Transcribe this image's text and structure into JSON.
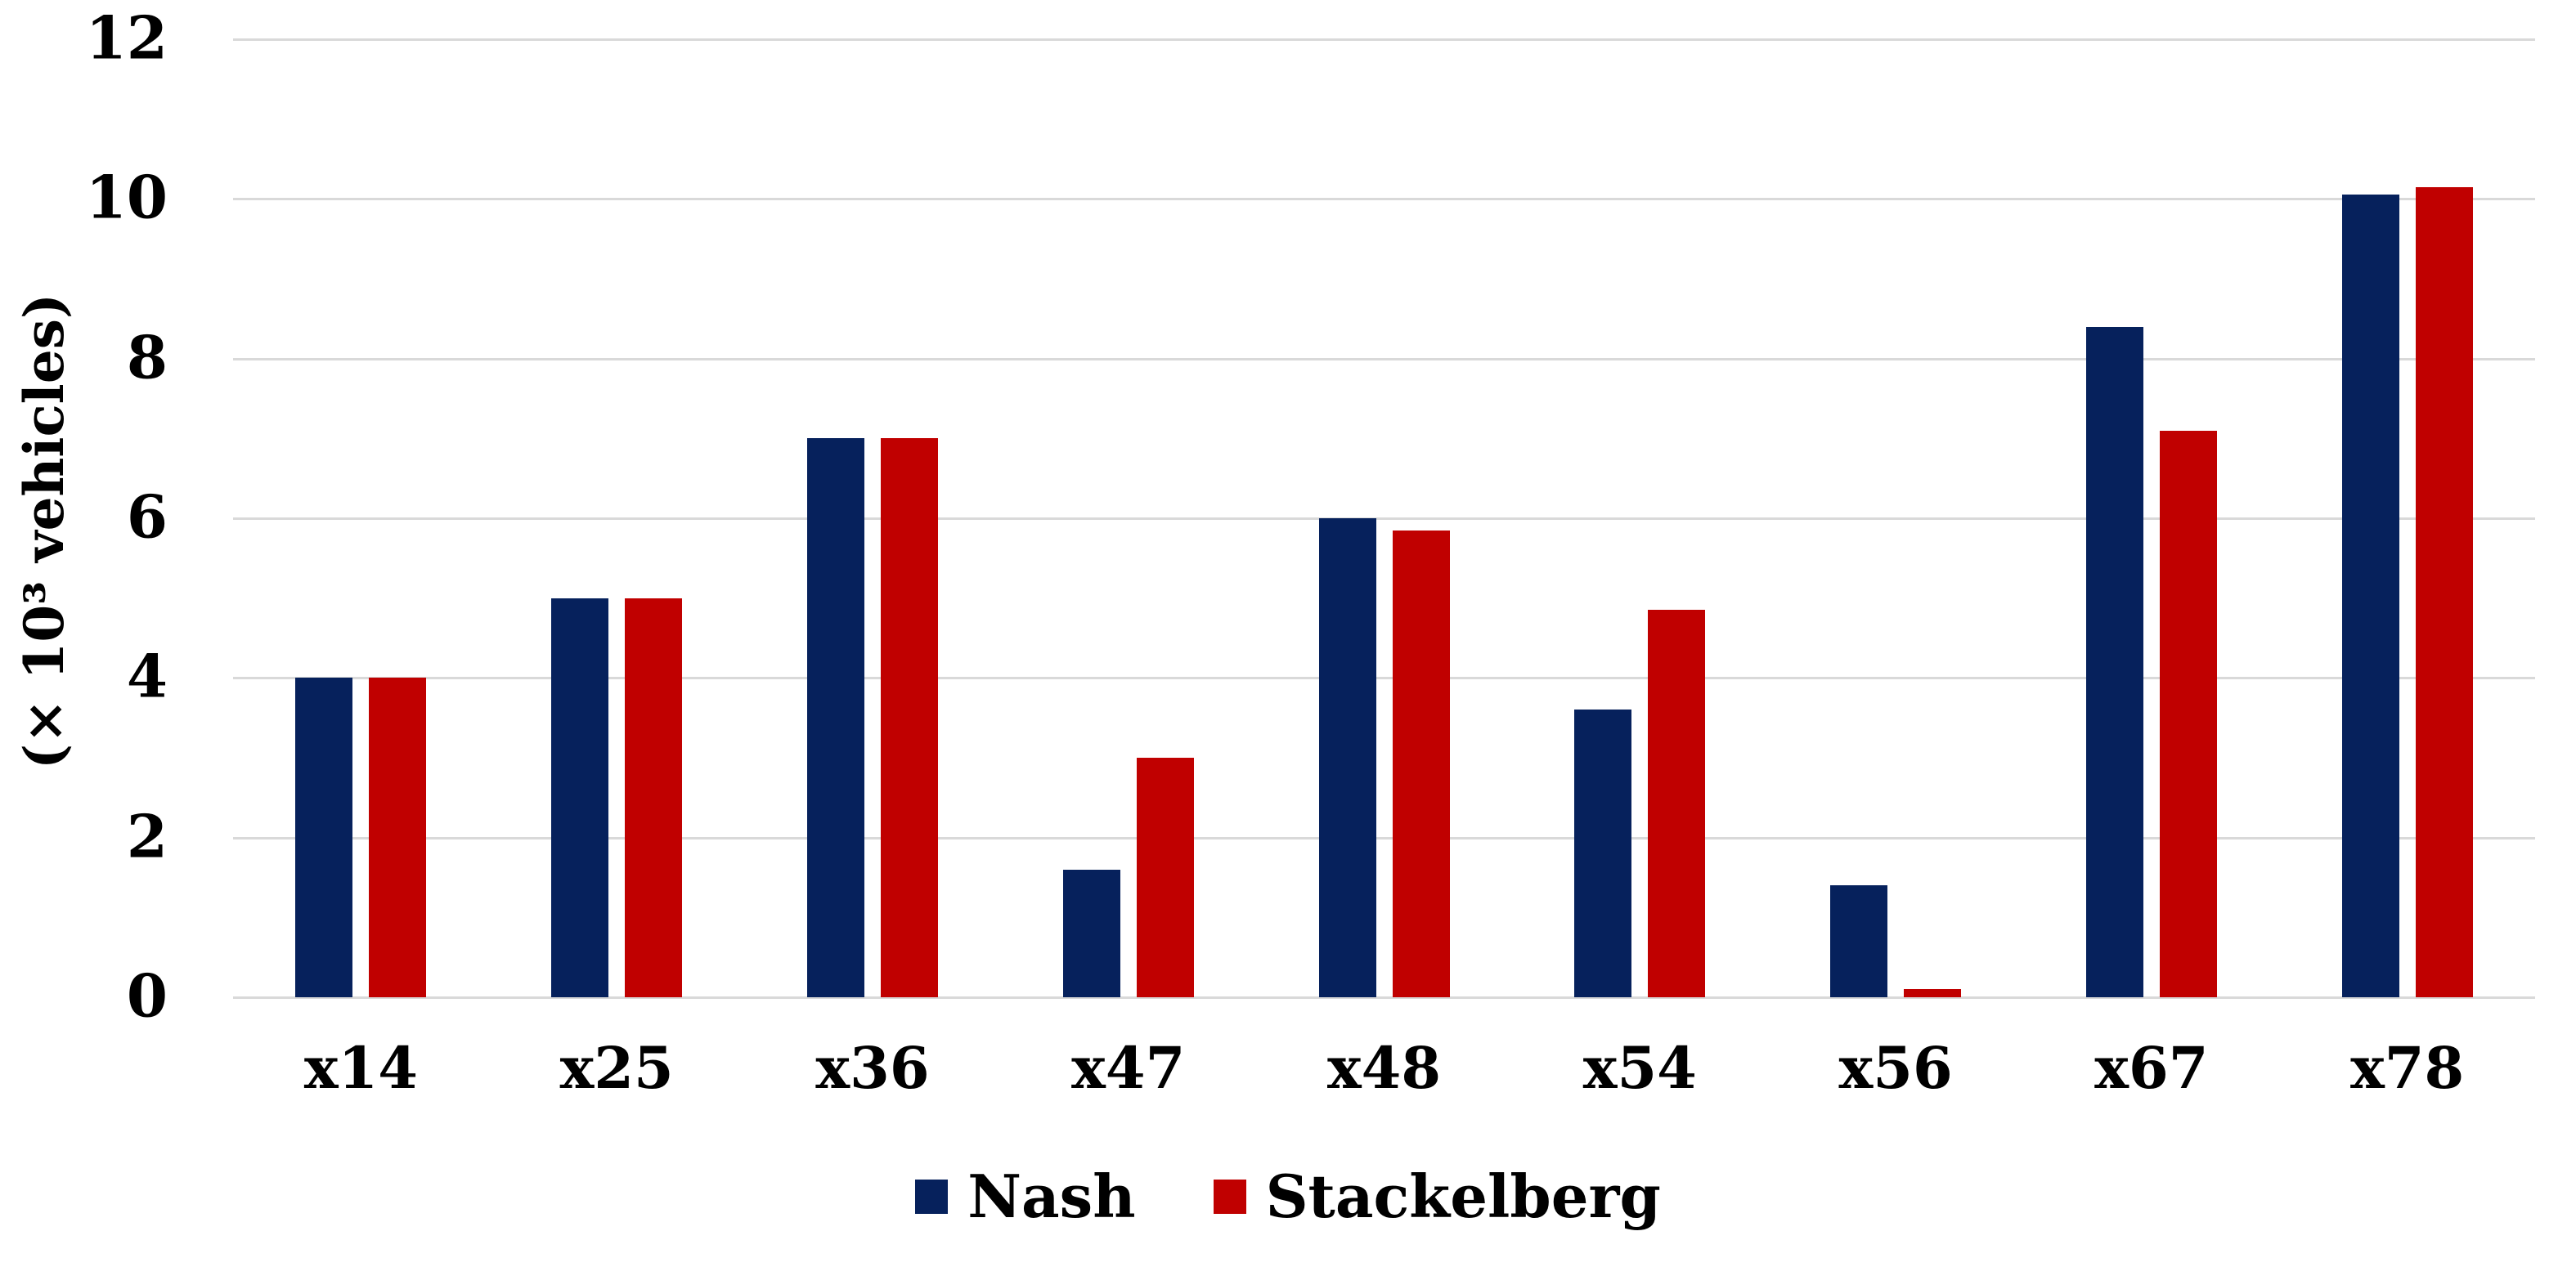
{
  "chart_data": {
    "type": "bar",
    "title": "",
    "ylabel": "(× 10³ vehicles)",
    "xlabel": "",
    "categories": [
      "x14",
      "x25",
      "x36",
      "x47",
      "x48",
      "x54",
      "x56",
      "x67",
      "x78"
    ],
    "series": [
      {
        "name": "Nash",
        "color": "#06215c",
        "values": [
          4.0,
          5.0,
          7.0,
          1.6,
          6.0,
          3.6,
          1.4,
          8.4,
          10.05
        ]
      },
      {
        "name": "Stackelberg",
        "color": "#c00000",
        "values": [
          4.0,
          5.0,
          7.0,
          3.0,
          5.85,
          4.85,
          0.1,
          7.1,
          10.15
        ]
      }
    ],
    "ylim": [
      0,
      12
    ],
    "yticks": [
      0,
      2,
      4,
      6,
      8,
      10,
      12
    ],
    "grid": true,
    "gridline_color": "#d9d9d9",
    "background_color": "#ffffff",
    "text_color": "#000000",
    "legend_position": "bottom-center"
  }
}
